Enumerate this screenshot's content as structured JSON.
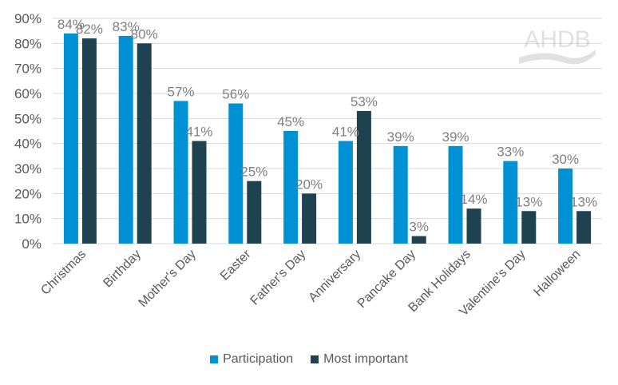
{
  "chart_data": {
    "type": "bar",
    "categories": [
      "Christmas",
      "Birthday",
      "Mother's Day",
      "Easter",
      "Father's Day",
      "Anniversary",
      "Pancake Day",
      "Bank Holidays",
      "Valentine's Day",
      "Halloween"
    ],
    "series": [
      {
        "name": "Participation",
        "color": "#0091D5",
        "values": [
          84,
          83,
          57,
          56,
          45,
          41,
          39,
          39,
          33,
          30
        ]
      },
      {
        "name": "Most important",
        "color": "#1F4250",
        "values": [
          82,
          80,
          41,
          25,
          20,
          53,
          3,
          14,
          13,
          13
        ]
      }
    ],
    "ylim": [
      0,
      90
    ],
    "yticks": [
      0,
      10,
      20,
      30,
      40,
      50,
      60,
      70,
      80,
      90
    ],
    "tick_suffix": "%",
    "grid": true,
    "legend": "bottom",
    "data_labels": true
  },
  "logo": {
    "text": "AHDB"
  }
}
